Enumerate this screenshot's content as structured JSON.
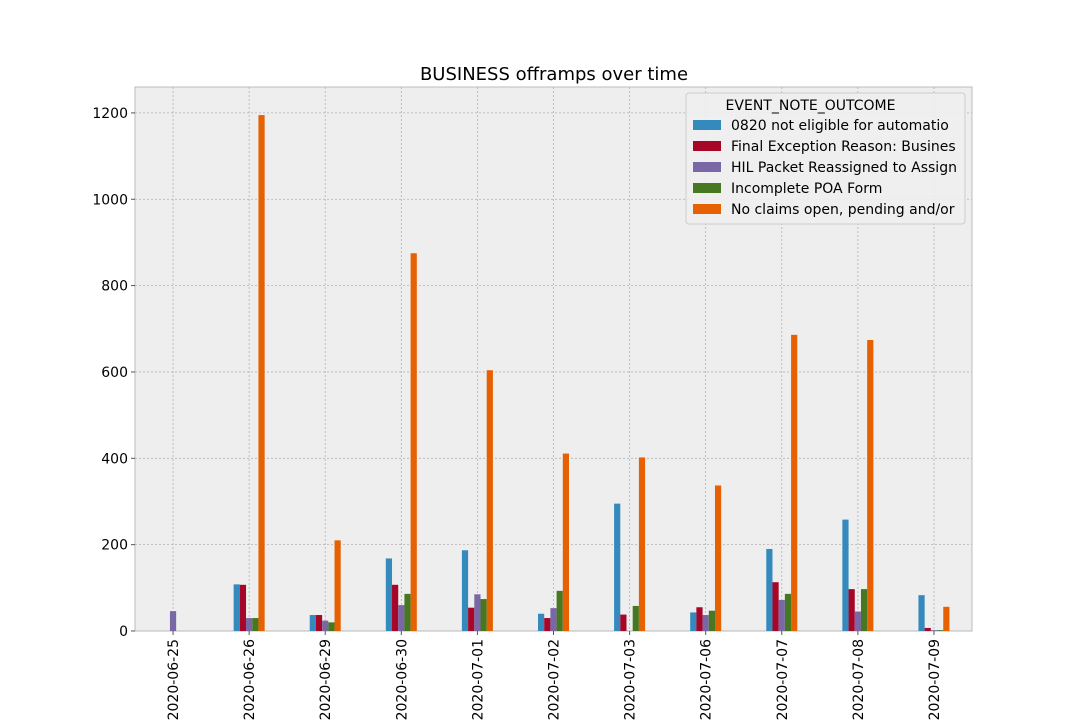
{
  "chart_data": {
    "type": "bar",
    "title": "BUSINESS offramps over time",
    "xlabel": "",
    "ylabel": "",
    "ylim": [
      0,
      1260
    ],
    "yticks": [
      0,
      200,
      400,
      600,
      800,
      1000,
      1200
    ],
    "grid": true,
    "legend": {
      "title": "EVENT_NOTE_OUTCOME",
      "placement": "top-right"
    },
    "categories": [
      "2020-06-25",
      "2020-06-26",
      "2020-06-29",
      "2020-06-30",
      "2020-07-01",
      "2020-07-02",
      "2020-07-03",
      "2020-07-06",
      "2020-07-07",
      "2020-07-08",
      "2020-07-09"
    ],
    "series": [
      {
        "name": "0820 not eligible for automatio",
        "color": "#348abd",
        "values": [
          0,
          108,
          37,
          168,
          187,
          40,
          295,
          43,
          190,
          258,
          83
        ]
      },
      {
        "name": "Final Exception Reason: Busines",
        "color": "#a60628",
        "values": [
          0,
          107,
          37,
          107,
          54,
          30,
          38,
          55,
          113,
          97,
          7
        ]
      },
      {
        "name": "HIL Packet Reassigned to Assign",
        "color": "#7a68a6",
        "values": [
          46,
          30,
          24,
          60,
          85,
          53,
          0,
          37,
          72,
          45,
          2
        ]
      },
      {
        "name": "Incomplete POA Form",
        "color": "#467821",
        "values": [
          0,
          30,
          20,
          86,
          74,
          93,
          58,
          47,
          86,
          97,
          2
        ]
      },
      {
        "name": "No claims open, pending and/or",
        "color": "#e66101",
        "values": [
          0,
          1195,
          210,
          875,
          604,
          411,
          402,
          337,
          686,
          674,
          56
        ]
      }
    ]
  }
}
